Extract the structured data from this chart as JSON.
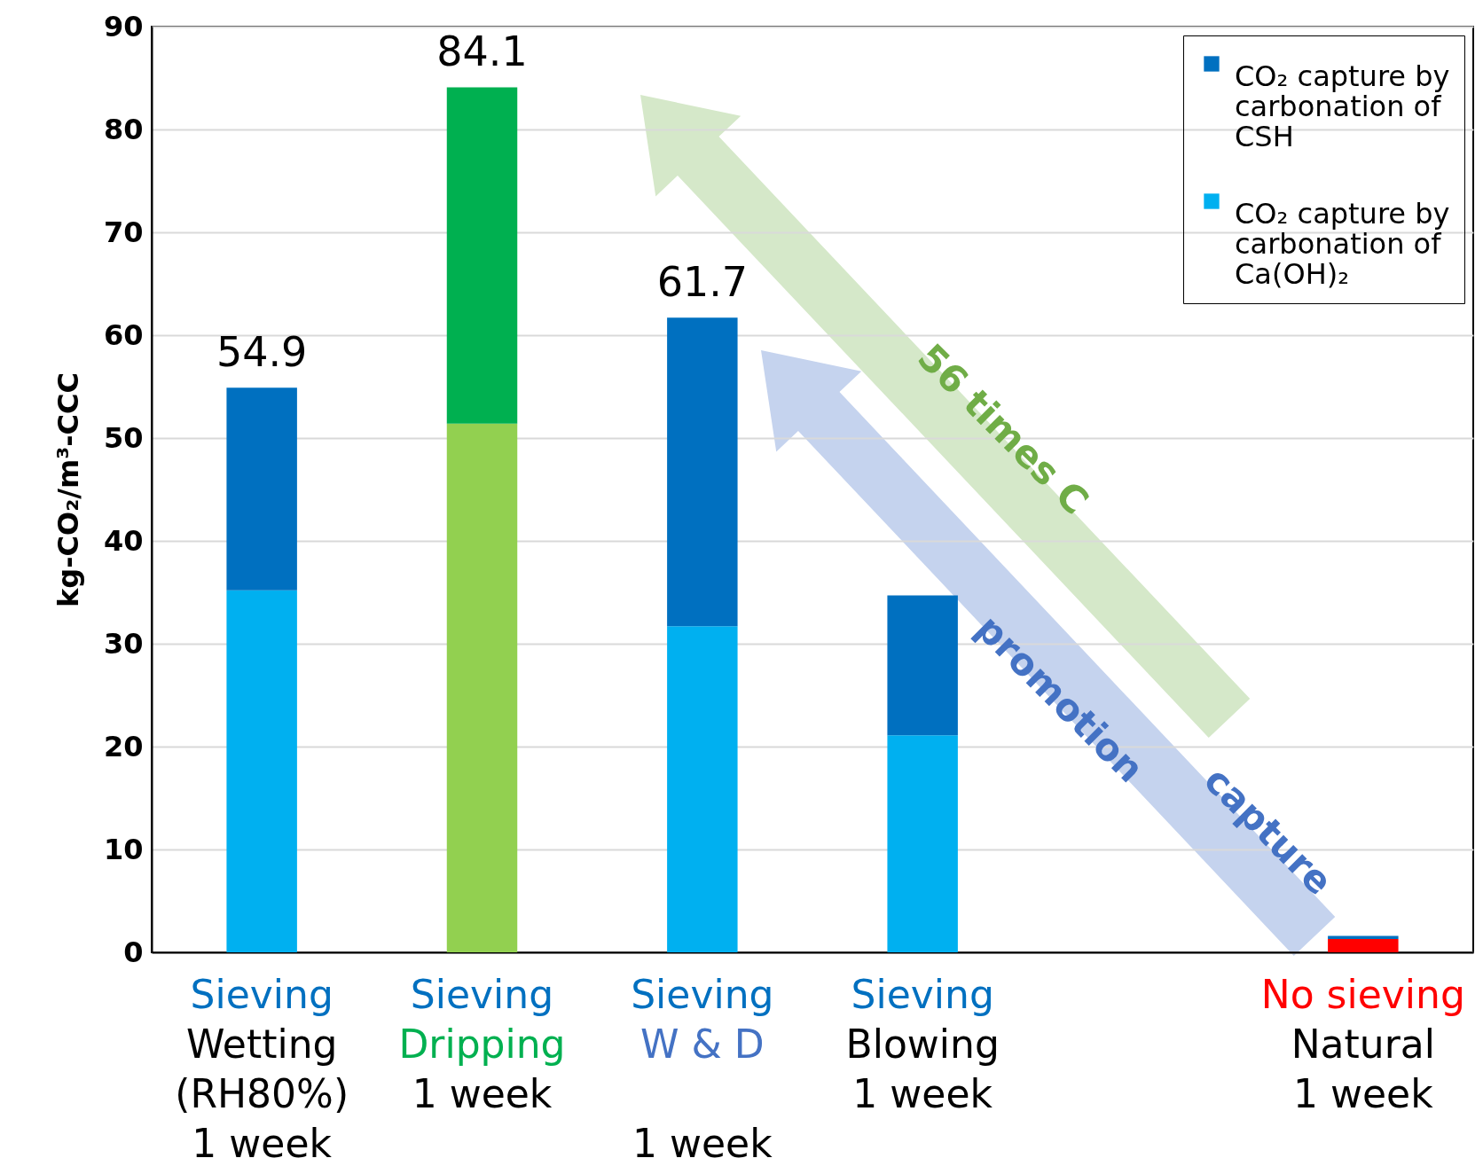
{
  "chart_data": {
    "type": "bar",
    "stacked": true,
    "ylabel": "kg-CO₂/m³-CCC",
    "categories": [
      "Sieving\nWetting\n(RH80%)\n1 week",
      "Sieving\nDripping\n1 week",
      "Sieving\nW & D\n\n1 week",
      "Sieving\nBlowing\n1 week",
      null,
      "No sieving\nNatural\n1 week"
    ],
    "series": [
      {
        "name": "CO₂ capture by carbonation of Ca(OH)₂",
        "color": "#00b0f0",
        "colors": [
          "#00b0f0",
          "#92d050",
          "#00b0f0",
          "#00b0f0",
          null,
          "#ff0000"
        ],
        "values": [
          35.2,
          51.4,
          31.7,
          21.1,
          null,
          1.3
        ]
      },
      {
        "name": "CO₂ capture by carbonation of CSH",
        "color": "#0070c0",
        "colors": [
          "#0070c0",
          "#00b050",
          "#0070c0",
          "#0070c0",
          null,
          "#0070c0"
        ],
        "values": [
          19.7,
          32.7,
          30.0,
          13.6,
          null,
          0.3
        ]
      }
    ],
    "totals": [
      "54.9",
      "84.1",
      "61.7",
      null,
      null,
      null
    ],
    "ylim": [
      0,
      90
    ],
    "yticks": [
      0,
      10,
      20,
      30,
      40,
      50,
      60,
      70,
      80,
      90
    ],
    "grid": "y",
    "legend": "top right",
    "annotations": [
      "56 times C",
      "promotion",
      "capture"
    ]
  }
}
